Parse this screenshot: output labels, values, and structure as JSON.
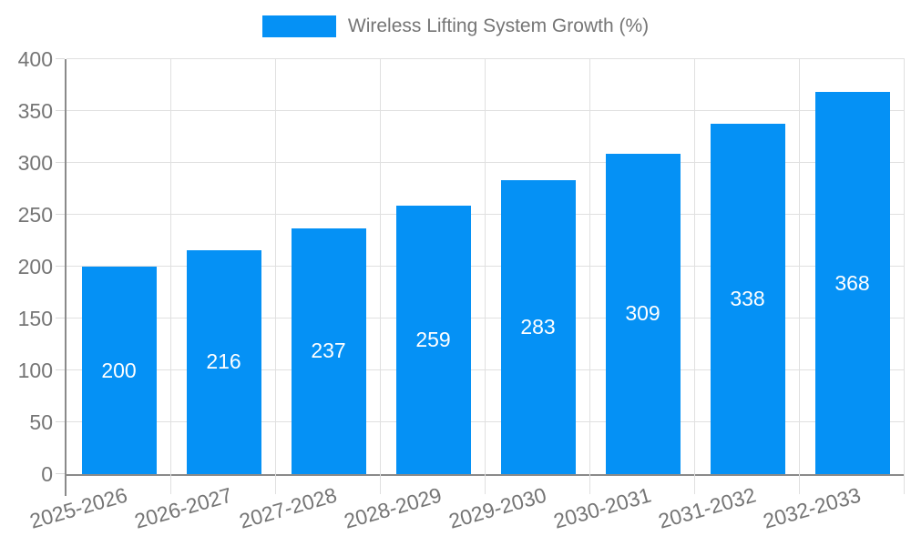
{
  "legend": {
    "label": "Wireless Lifting System Growth (%)"
  },
  "colors": {
    "bar": "#0591f5",
    "axis_line": "#8a8a8a",
    "gridline": "#e0e0e0",
    "axis_label": "#757575",
    "value_label": "#ffffff",
    "background": "#ffffff"
  },
  "chart_data": {
    "type": "bar",
    "title": "Wireless Lifting System Growth (%)",
    "categories": [
      "2025-2026",
      "2026-2027",
      "2027-2028",
      "2028-2029",
      "2029-2030",
      "2030-2031",
      "2031-2032",
      "2032-2033"
    ],
    "values": [
      200,
      216,
      237,
      259,
      283,
      309,
      338,
      368
    ],
    "xlabel": "",
    "ylabel": "",
    "ylim": [
      0,
      400
    ],
    "ytick_step": 50,
    "ytick_labels": [
      "0",
      "50",
      "100",
      "150",
      "200",
      "250",
      "300",
      "350",
      "400"
    ],
    "grid": true,
    "legend_position": "top",
    "value_label_position": "inside-center",
    "x_tick_rotation_deg": -16
  }
}
